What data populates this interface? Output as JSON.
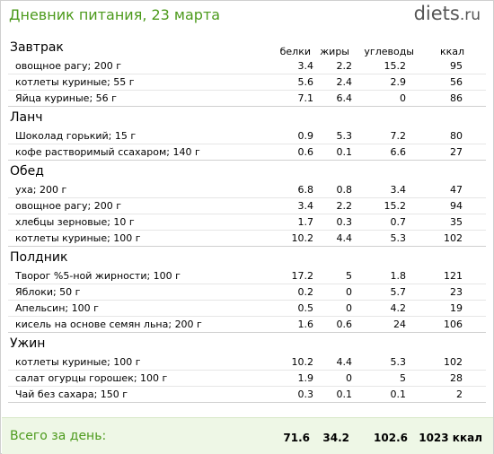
{
  "header": {
    "title": "Дневник питания, 23 марта",
    "logo_main": "diets",
    "logo_tld": ".ru"
  },
  "columns": {
    "protein": "белки",
    "fat": "жиры",
    "carbs": "углеводы",
    "kcal": "ккал"
  },
  "meals": [
    {
      "title": "Завтрак",
      "items": [
        {
          "name": "овощное рагу; 200 г",
          "b": "3.4",
          "z": "2.2",
          "u": "15.2",
          "k": "95"
        },
        {
          "name": "котлеты куриные; 55 г",
          "b": "5.6",
          "z": "2.4",
          "u": "2.9",
          "k": "56"
        },
        {
          "name": "Яйца куриные; 56 г",
          "b": "7.1",
          "z": "6.4",
          "u": "0",
          "k": "86"
        }
      ]
    },
    {
      "title": "Ланч",
      "items": [
        {
          "name": "Шоколад горький; 15 г",
          "b": "0.9",
          "z": "5.3",
          "u": "7.2",
          "k": "80"
        },
        {
          "name": "кофе растворимый ссахаром; 140 г",
          "b": "0.6",
          "z": "0.1",
          "u": "6.6",
          "k": "27"
        }
      ]
    },
    {
      "title": "Обед",
      "items": [
        {
          "name": "уха; 200 г",
          "b": "6.8",
          "z": "0.8",
          "u": "3.4",
          "k": "47"
        },
        {
          "name": "овощное рагу; 200 г",
          "b": "3.4",
          "z": "2.2",
          "u": "15.2",
          "k": "94"
        },
        {
          "name": "хлебцы зерновые; 10 г",
          "b": "1.7",
          "z": "0.3",
          "u": "0.7",
          "k": "35"
        },
        {
          "name": "котлеты куриные; 100 г",
          "b": "10.2",
          "z": "4.4",
          "u": "5.3",
          "k": "102"
        }
      ]
    },
    {
      "title": "Полдник",
      "items": [
        {
          "name": "Творог %5-ной жирности; 100 г",
          "b": "17.2",
          "z": "5",
          "u": "1.8",
          "k": "121"
        },
        {
          "name": "Яблоки; 50 г",
          "b": "0.2",
          "z": "0",
          "u": "5.7",
          "k": "23"
        },
        {
          "name": "Апельсин; 100 г",
          "b": "0.5",
          "z": "0",
          "u": "4.2",
          "k": "19"
        },
        {
          "name": "кисель на основе семян льна; 200 г",
          "b": "1.6",
          "z": "0.6",
          "u": "24",
          "k": "106"
        }
      ]
    },
    {
      "title": "Ужин",
      "items": [
        {
          "name": "котлеты куриные; 100 г",
          "b": "10.2",
          "z": "4.4",
          "u": "5.3",
          "k": "102"
        },
        {
          "name": "салат огурцы горошек; 100 г",
          "b": "1.9",
          "z": "0",
          "u": "5",
          "k": "28"
        },
        {
          "name": "Чай без сахара; 150 г",
          "b": "0.3",
          "z": "0.1",
          "u": "0.1",
          "k": "2"
        }
      ]
    }
  ],
  "footer": {
    "label": "Всего за день:",
    "protein": "71.6",
    "fat": "34.2",
    "carbs": "102.6",
    "kcal": "1023 ккал"
  }
}
